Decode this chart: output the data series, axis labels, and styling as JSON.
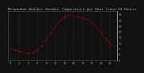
{
  "title": "Milwaukee Weather Outdoor Temperature per Hour (Last 24 Hours)",
  "hours": [
    0,
    1,
    2,
    3,
    4,
    5,
    6,
    7,
    8,
    9,
    10,
    11,
    12,
    13,
    14,
    15,
    16,
    17,
    18,
    19,
    20,
    21,
    22,
    23
  ],
  "temps": [
    5,
    4,
    3,
    2,
    1,
    2,
    4,
    8,
    13,
    19,
    25,
    30,
    33,
    35,
    34,
    33,
    32,
    31,
    28,
    24,
    19,
    14,
    10,
    7
  ],
  "line_color": "#dd0000",
  "bg_color": "#111111",
  "plot_bg": "#111111",
  "grid_color": "#444444",
  "tick_color": "#aaaaaa",
  "title_color": "#bbbbbb",
  "ylim": [
    -5,
    38
  ],
  "ytick_vals": [
    -5,
    0,
    5,
    10,
    15,
    20,
    25,
    30,
    35
  ],
  "ytick_labels": [
    "-5",
    "0",
    "5",
    "10",
    "15",
    "20",
    "25",
    "30",
    "35"
  ],
  "title_fontsize": 3.2,
  "tick_fontsize": 2.5,
  "spine_color": "#555555",
  "right_border_color": "#888888"
}
